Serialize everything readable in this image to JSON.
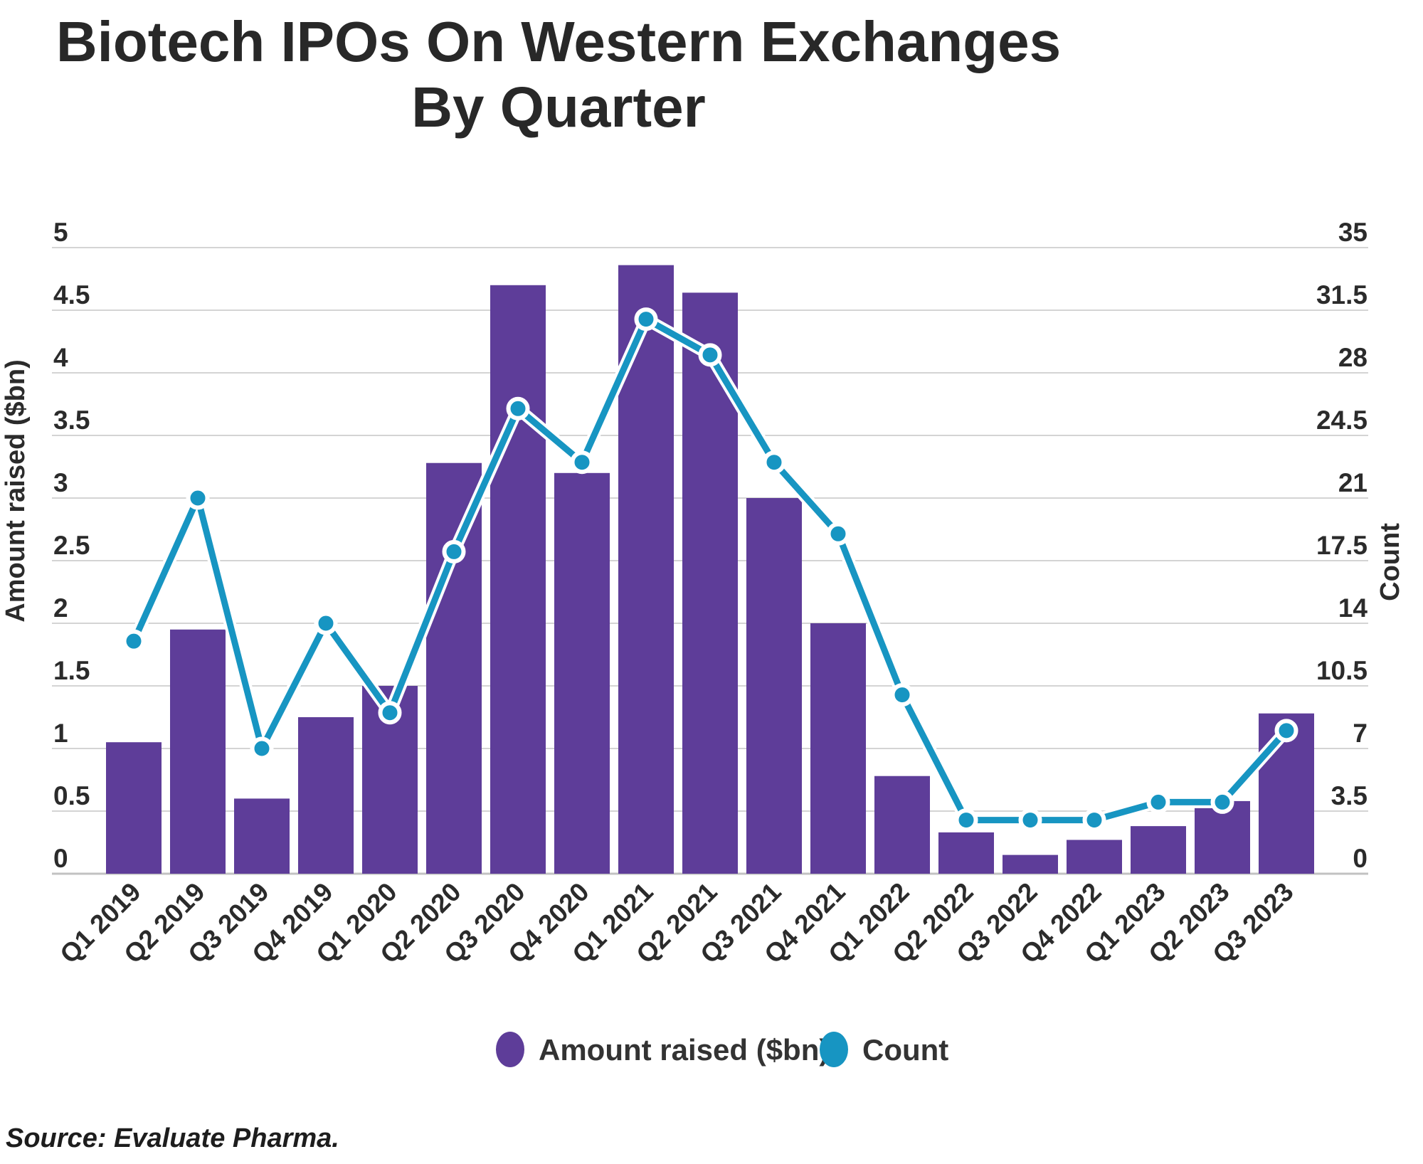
{
  "title": {
    "line1": "Biotech IPOs On Western Exchanges",
    "line2": "By Quarter"
  },
  "source": "Source: Evaluate Pharma.",
  "colors": {
    "bar": "#5e3d99",
    "line": "#1795c2",
    "gridline": "#d4d4d4",
    "baseline": "#c2c2c2",
    "background": "#ffffff"
  },
  "legend": {
    "items": [
      {
        "label": "Amount raised ($bn)",
        "color": "#5e3d99"
      },
      {
        "label": "Count",
        "color": "#1795c2"
      }
    ]
  },
  "chart_data": {
    "type": "bar",
    "subtype": "combo-bar-line-dual-axis",
    "title": "Biotech IPOs On Western Exchanges By Quarter",
    "categories": [
      "Q1 2019",
      "Q2 2019",
      "Q3 2019",
      "Q4 2019",
      "Q1 2020",
      "Q2 2020",
      "Q3 2020",
      "Q4 2020",
      "Q1 2021",
      "Q2 2021",
      "Q3 2021",
      "Q4 2021",
      "Q1 2022",
      "Q2 2022",
      "Q3 2022",
      "Q4 2022",
      "Q1 2023",
      "Q2 2023",
      "Q3 2023"
    ],
    "series": [
      {
        "name": "Amount raised ($bn)",
        "type": "bar",
        "axis": "left",
        "color": "#5e3d99",
        "values": [
          1.05,
          1.95,
          0.6,
          1.25,
          1.5,
          3.28,
          4.7,
          3.2,
          4.86,
          4.64,
          3.0,
          2.0,
          0.78,
          0.33,
          0.15,
          0.27,
          0.38,
          0.58,
          1.28
        ]
      },
      {
        "name": "Count",
        "type": "line",
        "axis": "right",
        "color": "#1795c2",
        "values": [
          13,
          21,
          7,
          14,
          9,
          18,
          26,
          23,
          31,
          29,
          23,
          19,
          10,
          3,
          3,
          3,
          4,
          4,
          8
        ]
      }
    ],
    "left_axis": {
      "title": "Amount raised ($bn)",
      "min": 0,
      "max": 5,
      "tick_step": 0.5,
      "ticks": [
        "0",
        "0.5",
        "1",
        "1.5",
        "2",
        "2.5",
        "3",
        "3.5",
        "4",
        "4.5",
        "5"
      ]
    },
    "right_axis": {
      "title": "Count",
      "min": 0,
      "max": 35,
      "tick_step": 3.5,
      "ticks": [
        "0",
        "3.5",
        "7",
        "10.5",
        "14",
        "17.5",
        "21",
        "24.5",
        "28",
        "31.5",
        "35"
      ]
    },
    "grid": true,
    "legend_position": "bottom"
  }
}
